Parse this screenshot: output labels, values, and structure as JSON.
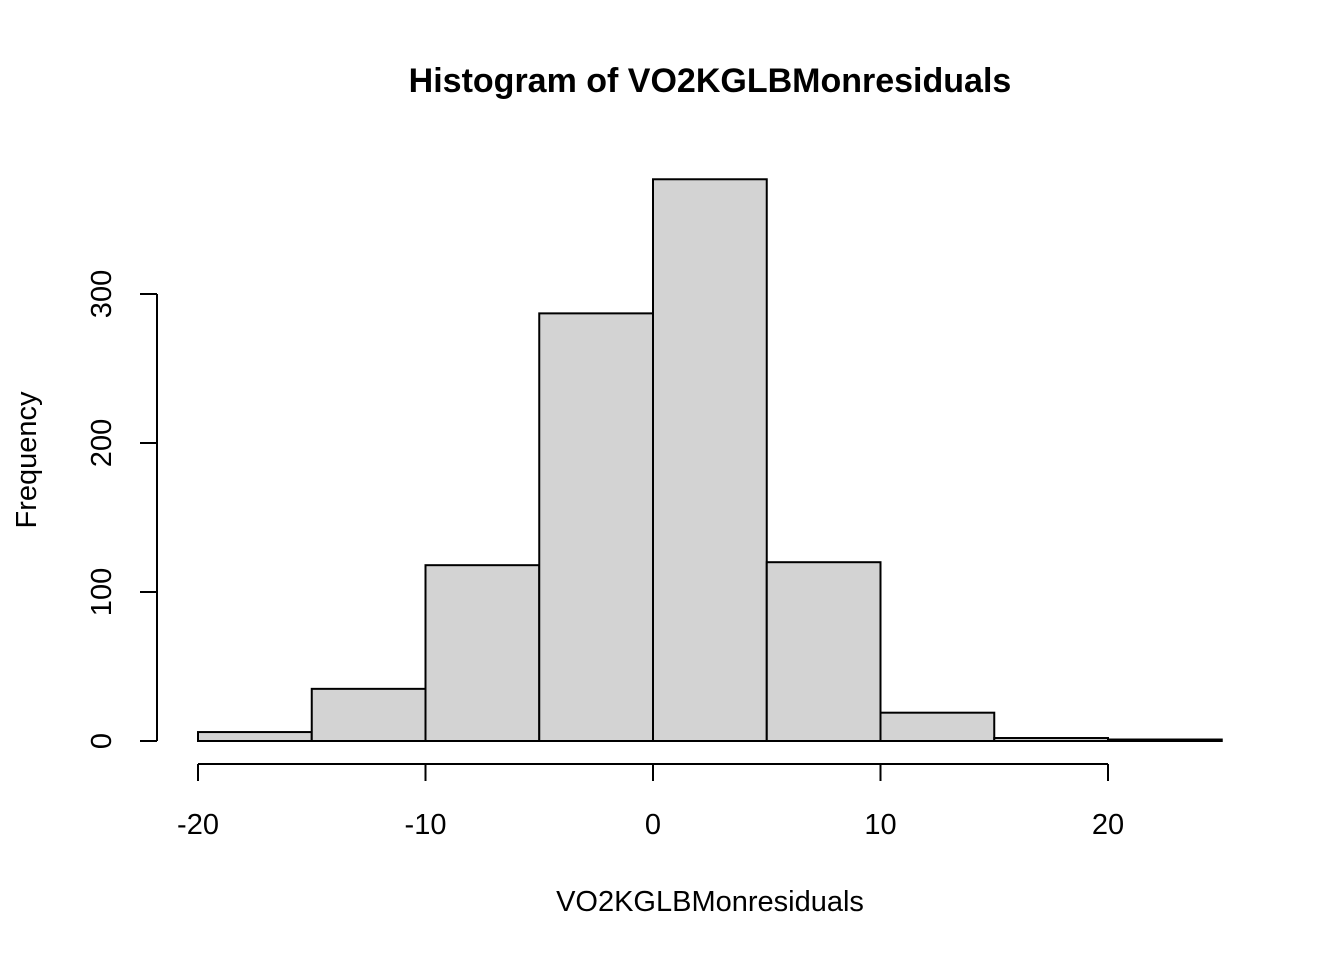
{
  "chart_data": {
    "type": "bar",
    "title": "Histogram of VO2KGLBMonresiduals",
    "xlabel": "VO2KGLBMonresiduals",
    "ylabel": "Frequency",
    "bins": [
      {
        "from": -20,
        "to": -15,
        "count": 6
      },
      {
        "from": -15,
        "to": -10,
        "count": 35
      },
      {
        "from": -10,
        "to": -5,
        "count": 118
      },
      {
        "from": -5,
        "to": 0,
        "count": 287
      },
      {
        "from": 0,
        "to": 5,
        "count": 377
      },
      {
        "from": 5,
        "to": 10,
        "count": 120
      },
      {
        "from": 10,
        "to": 15,
        "count": 19
      },
      {
        "from": 15,
        "to": 20,
        "count": 2
      },
      {
        "from": 20,
        "to": 25,
        "count": 1
      }
    ],
    "xlim": [
      -20,
      25
    ],
    "ylim": [
      0,
      377
    ],
    "x_ticks": [
      -20,
      -10,
      0,
      10,
      20
    ],
    "x_tick_labels": [
      "-20",
      "-10",
      "0",
      "10",
      "20"
    ],
    "y_ticks": [
      0,
      100,
      200,
      300
    ],
    "y_tick_labels": [
      "0",
      "100",
      "200",
      "300"
    ],
    "grid": false,
    "legend": "none",
    "colors": {
      "bar_fill": "#d3d3d3",
      "bar_stroke": "#000000"
    }
  }
}
